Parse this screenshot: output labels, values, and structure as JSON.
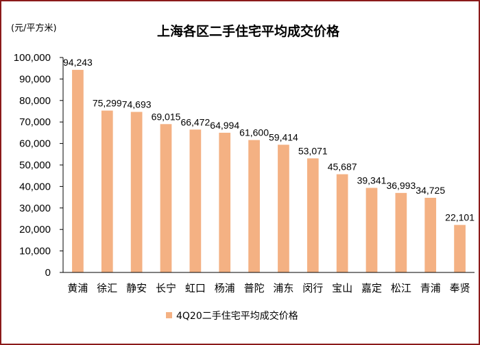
{
  "chart_data": {
    "type": "bar",
    "title": "上海各区二手住宅平均成交价格",
    "unit_label": "(元/平方米)",
    "categories": [
      "黄浦",
      "徐汇",
      "静安",
      "长宁",
      "虹口",
      "杨浦",
      "普陀",
      "浦东",
      "闵行",
      "宝山",
      "嘉定",
      "松江",
      "青浦",
      "奉贤"
    ],
    "series": [
      {
        "name": "4Q20二手住宅平均成交价格",
        "values": [
          94243,
          75299,
          74693,
          69015,
          66472,
          64994,
          61600,
          59414,
          53071,
          45687,
          39341,
          36993,
          34725,
          22101
        ],
        "labels": [
          "94,243",
          "75,299",
          "74,693",
          "69,015",
          "66,472",
          "64,994",
          "61,600",
          "59,414",
          "53,071",
          "45,687",
          "39,341",
          "36,993",
          "34,725",
          "22,101"
        ],
        "color": "#f4b183"
      }
    ],
    "ylim": [
      0,
      100000
    ],
    "yticks": [
      0,
      10000,
      20000,
      30000,
      40000,
      50000,
      60000,
      70000,
      80000,
      90000,
      100000
    ],
    "ytick_labels": [
      "0",
      "10,000",
      "20,000",
      "30,000",
      "40,000",
      "50,000",
      "60,000",
      "70,000",
      "80,000",
      "90,000",
      "100,000"
    ],
    "grid": false,
    "legend_position": "bottom-center"
  }
}
